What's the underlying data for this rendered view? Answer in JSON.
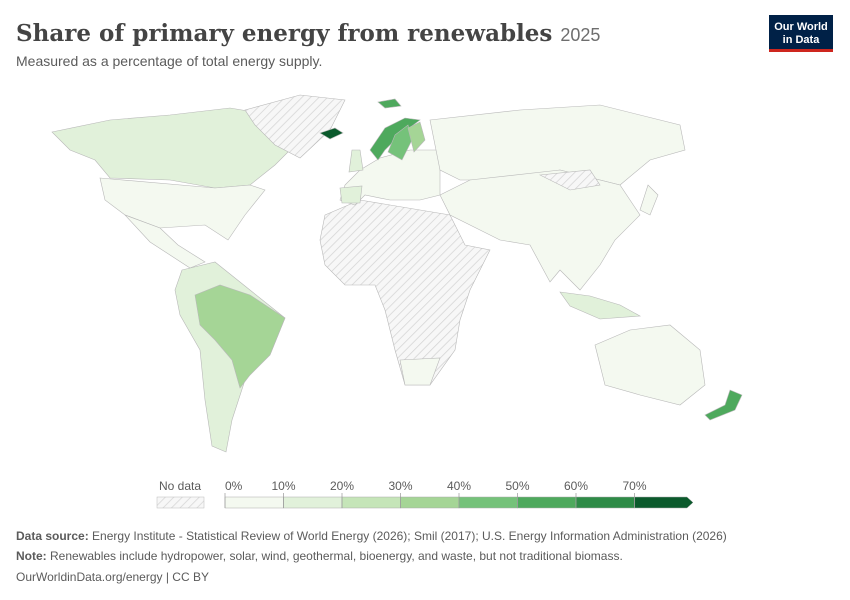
{
  "header": {
    "title": "Share of primary energy from renewables",
    "year": "2025",
    "subtitle": "Measured as a percentage of total energy supply.",
    "logo": [
      "Our World",
      "in Data"
    ]
  },
  "legend": {
    "no_data": "No data",
    "ticks": [
      {
        "value": 0,
        "label": "0%"
      },
      {
        "value": 10,
        "label": "10%"
      },
      {
        "value": 20,
        "label": "20%"
      },
      {
        "value": 30,
        "label": "30%"
      },
      {
        "value": 40,
        "label": "40%"
      },
      {
        "value": 50,
        "label": "50%"
      },
      {
        "value": 60,
        "label": "60%"
      },
      {
        "value": 70,
        "label": "70%"
      }
    ],
    "colors": [
      "#f4f9f0",
      "#e1f1da",
      "#c5e5b8",
      "#a5d596",
      "#75c27a",
      "#4ea95d",
      "#2e8b47",
      "#0b5a2c"
    ]
  },
  "footer": {
    "source_label": "Data source:",
    "source": "Energy Institute - Statistical Review of World Energy (2026); Smil (2017); U.S. Energy Information Administration (2026)",
    "note_label": "Note:",
    "note": "Renewables include hydropower, solar, wind, geothermal, bioenergy, and waste, but not traditional biomass.",
    "url": "OurWorldinData.org/energy | CC BY"
  }
}
